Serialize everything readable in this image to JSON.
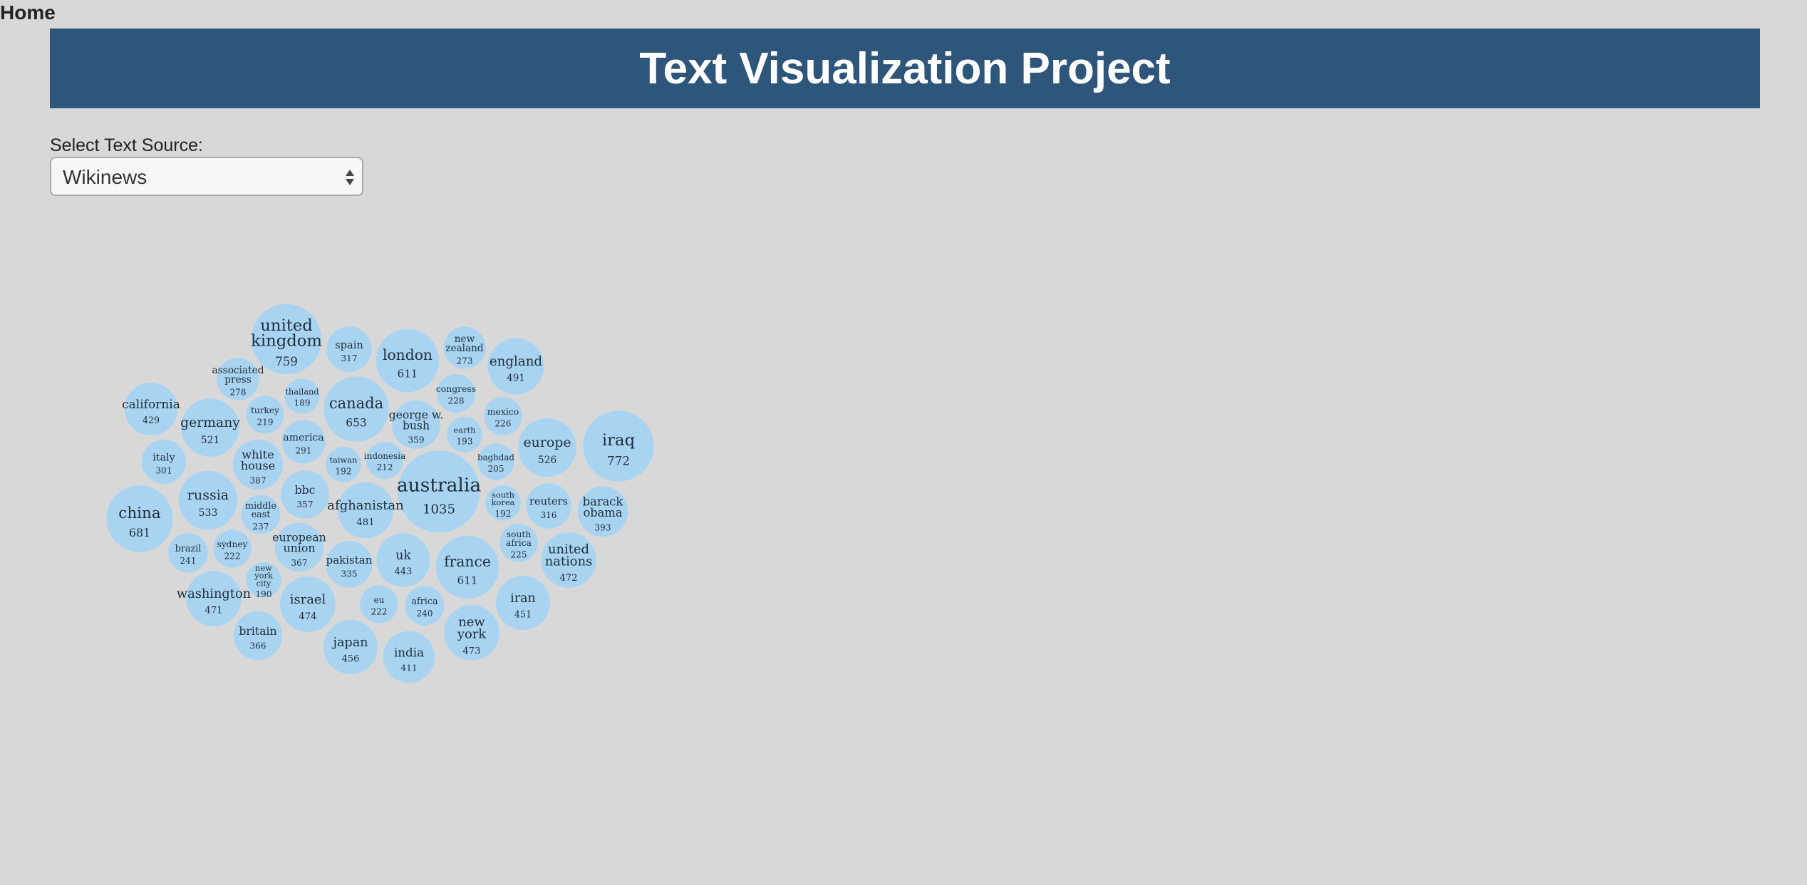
{
  "nav": {
    "home_label": "Home"
  },
  "header": {
    "title": "Text Visualization Project"
  },
  "source_select": {
    "label": "Select Text Source:",
    "selected": "Wikinews"
  },
  "colors": {
    "background": "#d8d8d8",
    "banner": "#2e557a",
    "bubble": "#a8d4f2"
  },
  "chart_data": {
    "type": "bubble",
    "title": "",
    "items": [
      {
        "label": "australia",
        "value": 1035
      },
      {
        "label": "iraq",
        "value": 772
      },
      {
        "label": "united kingdom",
        "value": 759
      },
      {
        "label": "china",
        "value": 681
      },
      {
        "label": "canada",
        "value": 653
      },
      {
        "label": "london",
        "value": 611
      },
      {
        "label": "france",
        "value": 611
      },
      {
        "label": "russia",
        "value": 533
      },
      {
        "label": "europe",
        "value": 526
      },
      {
        "label": "germany",
        "value": 521
      },
      {
        "label": "england",
        "value": 491
      },
      {
        "label": "afghanistan",
        "value": 481
      },
      {
        "label": "israel",
        "value": 474
      },
      {
        "label": "new york",
        "value": 473
      },
      {
        "label": "united nations",
        "value": 472
      },
      {
        "label": "washington",
        "value": 471
      },
      {
        "label": "japan",
        "value": 456
      },
      {
        "label": "iran",
        "value": 451
      },
      {
        "label": "uk",
        "value": 443
      },
      {
        "label": "california",
        "value": 429
      },
      {
        "label": "india",
        "value": 411
      },
      {
        "label": "barack obama",
        "value": 393
      },
      {
        "label": "white house",
        "value": 387
      },
      {
        "label": "european union",
        "value": 367
      },
      {
        "label": "britain",
        "value": 366
      },
      {
        "label": "george w. bush",
        "value": 359
      },
      {
        "label": "bbc",
        "value": 357
      },
      {
        "label": "pakistan",
        "value": 335
      },
      {
        "label": "spain",
        "value": 317
      },
      {
        "label": "reuters",
        "value": 316
      },
      {
        "label": "italy",
        "value": 301
      },
      {
        "label": "america",
        "value": 291
      },
      {
        "label": "associated press",
        "value": 278
      },
      {
        "label": "new zealand",
        "value": 273
      },
      {
        "label": "brazil",
        "value": 241
      },
      {
        "label": "africa",
        "value": 240
      },
      {
        "label": "middle east",
        "value": 237
      },
      {
        "label": "congress",
        "value": 228
      },
      {
        "label": "mexico",
        "value": 226
      },
      {
        "label": "south africa",
        "value": 225
      },
      {
        "label": "sydney",
        "value": 222
      },
      {
        "label": "eu",
        "value": 222
      },
      {
        "label": "turkey",
        "value": 219
      },
      {
        "label": "indonesia",
        "value": 212
      },
      {
        "label": "baghdad",
        "value": 205
      },
      {
        "label": "earth",
        "value": 193
      },
      {
        "label": "taiwan",
        "value": 192
      },
      {
        "label": "south korea",
        "value": 192
      },
      {
        "label": "new york city",
        "value": 190
      },
      {
        "label": "thailand",
        "value": 189
      }
    ]
  }
}
